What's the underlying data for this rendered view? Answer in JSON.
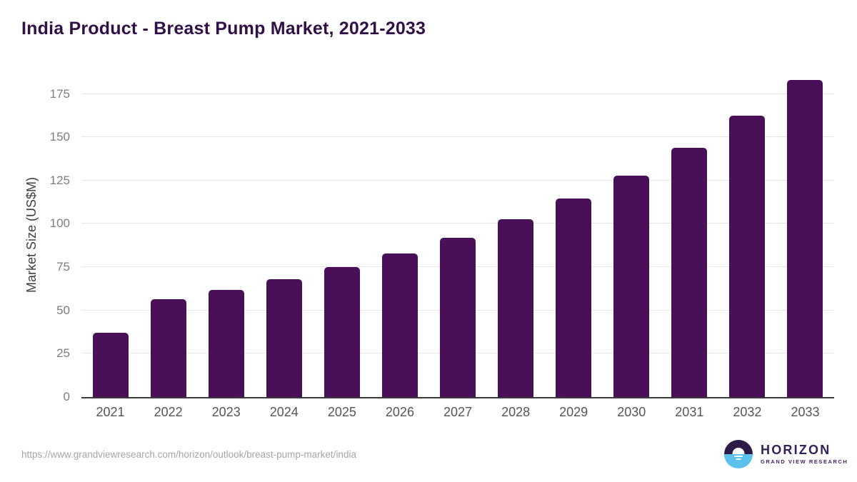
{
  "title": "India Product - Breast Pump Market, 2021-2033",
  "chart_data": {
    "type": "bar",
    "title": "India Product - Breast Pump Market, 2021-2033",
    "categories": [
      "2021",
      "2022",
      "2023",
      "2024",
      "2025",
      "2026",
      "2027",
      "2028",
      "2029",
      "2030",
      "2031",
      "2032",
      "2033"
    ],
    "values": [
      37,
      56.5,
      62,
      68,
      75,
      83,
      92,
      102.5,
      114.5,
      128,
      144,
      162.5,
      183
    ],
    "xlabel": "",
    "ylabel": "Market Size (US$M)",
    "yticks": [
      0,
      25,
      50,
      75,
      100,
      125,
      150,
      175
    ],
    "ylim": [
      0,
      188
    ],
    "grid": "horizontal",
    "legend": "none",
    "bar_color": "#491057"
  },
  "colors": {
    "bar": "#491057",
    "title": "#301045",
    "gridline": "#e6e6e6",
    "axis_line": "#3a3a3a",
    "y_tick": "#7d7d7d",
    "x_tick": "#555555",
    "axis_title": "#3f3f3f",
    "url": "#a5a5a5",
    "logo_purple": "#33205c",
    "logo_dark": "#2e1a47",
    "logo_blue": "#5bc2ee",
    "bg": "#ffffff"
  },
  "footer": {
    "url": "https://www.grandviewresearch.com/horizon/outlook/breast-pump-market/india",
    "logo": {
      "name": "HORIZON",
      "subtitle": "GRAND VIEW RESEARCH"
    }
  }
}
